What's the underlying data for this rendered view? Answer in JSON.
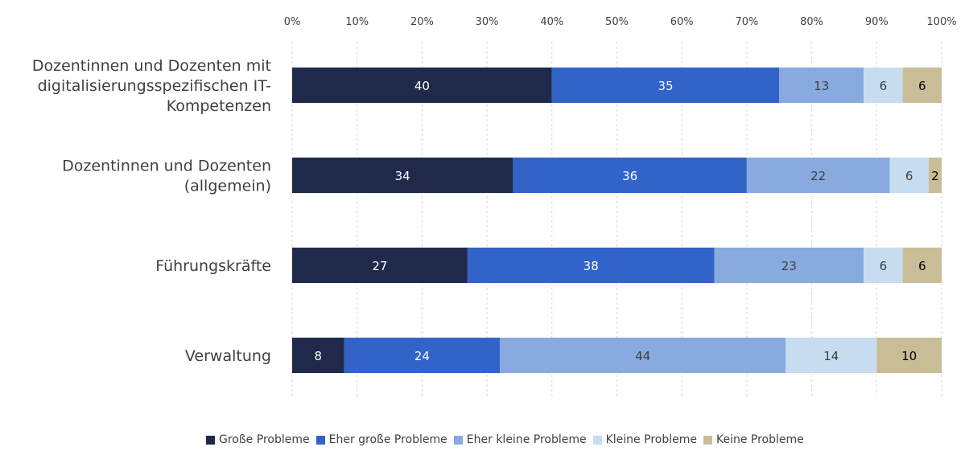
{
  "chart_data": {
    "type": "bar",
    "orientation": "horizontal",
    "stacked": "percent",
    "title": "",
    "xlabel": "",
    "ylabel": "",
    "xlim": [
      0,
      100
    ],
    "xticks": [
      "0%",
      "10%",
      "20%",
      "30%",
      "40%",
      "50%",
      "60%",
      "70%",
      "80%",
      "90%",
      "100%"
    ],
    "grid": true,
    "legend_position": "bottom",
    "categories": [
      "Dozentinnen und Dozenten mit digitalisierungsspezifischen IT-Kompetenzen",
      "Dozentinnen und Dozenten (allgemein)",
      "Führungskräfte",
      "Verwaltung"
    ],
    "category_lines": [
      [
        "Dozentinnen und Dozenten mit",
        "digitalisierungsspezifischen IT-",
        "Kompetenzen"
      ],
      [
        "Dozentinnen und Dozenten",
        "(allgemein)"
      ],
      [
        "Führungskräfte"
      ],
      [
        "Verwaltung"
      ]
    ],
    "series": [
      {
        "name": "Große Probleme",
        "color": "#1f2a4a",
        "label_color": "#ffffff",
        "values": [
          40,
          34,
          27,
          8
        ]
      },
      {
        "name": "Eher große Probleme",
        "color": "#3263c8",
        "label_color": "#ffffff",
        "values": [
          35,
          36,
          38,
          24
        ]
      },
      {
        "name": "Eher kleine Probleme",
        "color": "#88aadf",
        "label_color": "#404040",
        "values": [
          13,
          22,
          23,
          44
        ]
      },
      {
        "name": "Kleine Probleme",
        "color": "#c7dcef",
        "label_color": "#404040",
        "values": [
          6,
          6,
          6,
          14
        ]
      },
      {
        "name": "Keine Probleme",
        "color": "#c8bd96",
        "label_color": "#000000",
        "values": [
          6,
          2,
          6,
          10
        ]
      }
    ]
  }
}
